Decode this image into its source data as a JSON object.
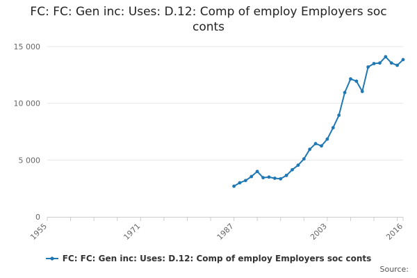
{
  "header": {
    "title": "FC: FC: Gen inc: Uses: D.12: Comp of employ Employers soc conts"
  },
  "footer": {
    "source_label": "Source:"
  },
  "colors": {
    "series": "#1f77b4",
    "grid": "#e6e6e6",
    "axis": "#cccccc",
    "tick_text": "#666666"
  },
  "chart_data": {
    "type": "line",
    "title": "FC: FC: Gen inc: Uses: D.12: Comp of employ Employers soc conts",
    "xlabel": "",
    "ylabel": "",
    "xlim": [
      1955,
      2016
    ],
    "ylim": [
      0,
      15000
    ],
    "x_ticks": [
      1955,
      1971,
      1987,
      2003,
      2016
    ],
    "y_ticks": [
      {
        "value": 0,
        "label": "0"
      },
      {
        "value": 5000,
        "label": "5 000"
      },
      {
        "value": 10000,
        "label": "10 000"
      },
      {
        "value": 15000,
        "label": "15 000"
      }
    ],
    "grid": "horizontal",
    "legend": "bottom-center",
    "series": [
      {
        "name": "FC: FC: Gen inc: Uses: D.12: Comp of employ Employers soc conts",
        "x": [
          1987,
          1988,
          1989,
          1990,
          1991,
          1992,
          1993,
          1994,
          1995,
          1996,
          1997,
          1998,
          1999,
          2000,
          2001,
          2002,
          2003,
          2004,
          2005,
          2006,
          2007,
          2008,
          2009,
          2010,
          2011,
          2012,
          2013,
          2014,
          2015,
          2016
        ],
        "values": [
          2700,
          3000,
          3200,
          3550,
          4000,
          3450,
          3500,
          3400,
          3350,
          3650,
          4150,
          4550,
          5100,
          5950,
          6450,
          6250,
          6850,
          7850,
          8950,
          10950,
          12150,
          11950,
          11050,
          13200,
          13500,
          13550,
          14100,
          13550,
          13350,
          13850
        ]
      }
    ]
  }
}
